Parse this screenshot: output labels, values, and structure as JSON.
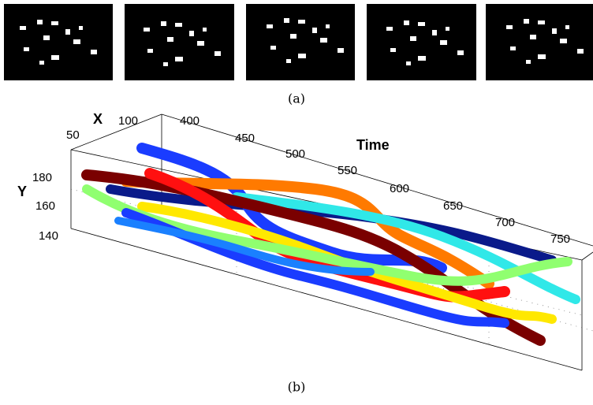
{
  "figure": {
    "caption_a": "(a)",
    "caption_b": "(b)",
    "axis_labels": {
      "x": "X",
      "y": "Y",
      "time": "Time"
    },
    "x_ticks": [
      50,
      100
    ],
    "y_ticks": [
      180,
      160,
      140
    ],
    "time_ticks": [
      400,
      450,
      500,
      550,
      600,
      650,
      700,
      750
    ]
  }
}
